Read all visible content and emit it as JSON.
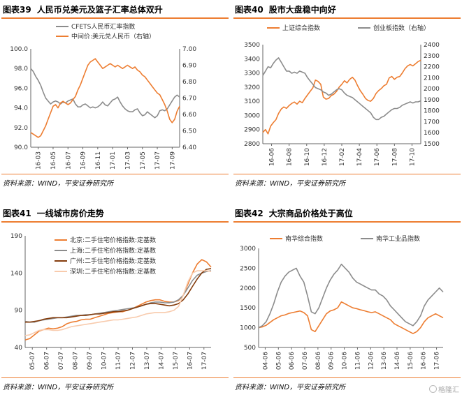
{
  "panels": [
    {
      "label": "图表39",
      "title": "人民币兑美元及篮子汇率总体双升",
      "source": "资料来源：WIND，平安证券研究所"
    },
    {
      "label": "图表40",
      "title": "股市大盘稳中向好",
      "source": "资料来源：WIND，平安证券研究所"
    },
    {
      "label": "图表41",
      "title": "一线城市房价走势",
      "source": "资料来源：WIND，平安证券研究所"
    },
    {
      "label": "图表42",
      "title": "大宗商品价格处于高位",
      "source": "资料来源：WIND，平安证券研究所"
    }
  ],
  "watermark": "格隆汇",
  "colors": {
    "orange": "#ED7D31",
    "gray": "#8C8C8C",
    "brown": "#843C0C",
    "peach": "#F8CBAD",
    "rule": "#ED7D31"
  },
  "chart_data": [
    {
      "type": "line",
      "x_ticks": [
        "16-03",
        "16-05",
        "16-07",
        "16-09",
        "16-11",
        "17-01",
        "17-03",
        "17-05",
        "17-07",
        "17-09"
      ],
      "y_left": {
        "ticks": [
          "90.0",
          "92.0",
          "94.0",
          "96.0",
          "98.0",
          "100.0"
        ],
        "ylim": [
          90,
          100
        ]
      },
      "y_right": {
        "ticks": [
          "6.40",
          "6.50",
          "6.60",
          "6.70",
          "6.80",
          "6.90",
          "7.00"
        ],
        "ylim": [
          6.4,
          7.0
        ]
      },
      "legend_position": "top",
      "series": [
        {
          "name": "CFETS人民币汇率指数",
          "axis": "left",
          "color": "#8C8C8C",
          "values": [
            98.0,
            97.7,
            97.2,
            96.8,
            96.3,
            95.6,
            95.0,
            94.7,
            94.4,
            94.6,
            94.7,
            94.6,
            94.4,
            94.6,
            94.5,
            94.7,
            94.8,
            94.9,
            94.4,
            94.1,
            94.1,
            94.3,
            94.4,
            94.2,
            94.0,
            94.1,
            94.0,
            94.1,
            94.3,
            94.6,
            94.3,
            94.2,
            94.5,
            94.8,
            94.9,
            95.1,
            94.6,
            94.2,
            93.9,
            93.7,
            93.6,
            93.6,
            93.8,
            93.9,
            93.5,
            93.2,
            93.3,
            93.6,
            93.4,
            93.2,
            93.0,
            93.2,
            93.7,
            93.8,
            93.7,
            93.9,
            94.3,
            94.7,
            95.1,
            95.3,
            95.1
          ]
        },
        {
          "name": "中间价:美元兑人民币（右轴）",
          "axis": "right",
          "color": "#ED7D31",
          "values": [
            6.49,
            6.48,
            6.47,
            6.46,
            6.47,
            6.5,
            6.53,
            6.57,
            6.61,
            6.65,
            6.66,
            6.64,
            6.67,
            6.68,
            6.67,
            6.66,
            6.67,
            6.69,
            6.71,
            6.75,
            6.78,
            6.82,
            6.86,
            6.9,
            6.92,
            6.93,
            6.94,
            6.92,
            6.9,
            6.88,
            6.89,
            6.9,
            6.91,
            6.9,
            6.89,
            6.9,
            6.89,
            6.88,
            6.89,
            6.9,
            6.89,
            6.88,
            6.89,
            6.87,
            6.86,
            6.84,
            6.83,
            6.81,
            6.79,
            6.77,
            6.75,
            6.73,
            6.72,
            6.69,
            6.66,
            6.62,
            6.57,
            6.55,
            6.57,
            6.62,
            6.65
          ]
        }
      ]
    },
    {
      "type": "line",
      "x_ticks": [
        "16-06",
        "16-08",
        "16-10",
        "16-12",
        "17-02",
        "17-04",
        "17-06",
        "17-08",
        "17-10"
      ],
      "y_left": {
        "ticks": [
          "2800",
          "2900",
          "3000",
          "3100",
          "3200",
          "3300",
          "3400",
          "3500"
        ],
        "ylim": [
          2800,
          3500
        ]
      },
      "y_right": {
        "ticks": [
          "1500",
          "1600",
          "1700",
          "1800",
          "1900",
          "2000",
          "2100",
          "2200",
          "2300",
          "2400"
        ],
        "ylim": [
          1500,
          2400
        ]
      },
      "legend_position": "top",
      "series": [
        {
          "name": "上证综合指数",
          "axis": "left",
          "color": "#ED7D31",
          "values": [
            2880,
            2900,
            2870,
            2925,
            2950,
            2970,
            3015,
            3045,
            3060,
            3050,
            3070,
            3085,
            3095,
            3080,
            3100,
            3090,
            3120,
            3145,
            3170,
            3195,
            3250,
            3240,
            3220,
            3130,
            3115,
            3120,
            3140,
            3150,
            3170,
            3200,
            3220,
            3245,
            3230,
            3255,
            3270,
            3250,
            3210,
            3175,
            3150,
            3120,
            3105,
            3100,
            3120,
            3155,
            3175,
            3190,
            3210,
            3220,
            3265,
            3275,
            3255,
            3270,
            3275,
            3300,
            3330,
            3350,
            3360,
            3350,
            3365,
            3380,
            3390
          ]
        },
        {
          "name": "创业板指数（右轴）",
          "axis": "right",
          "color": "#8C8C8C",
          "values": [
            2120,
            2160,
            2200,
            2190,
            2230,
            2260,
            2280,
            2240,
            2200,
            2160,
            2160,
            2140,
            2150,
            2140,
            2160,
            2150,
            2140,
            2100,
            2070,
            2040,
            2010,
            2000,
            1990,
            1970,
            1960,
            1940,
            1950,
            1970,
            1990,
            2000,
            1990,
            1960,
            1940,
            1930,
            1920,
            1900,
            1880,
            1860,
            1840,
            1820,
            1800,
            1780,
            1740,
            1720,
            1720,
            1740,
            1750,
            1770,
            1790,
            1810,
            1820,
            1820,
            1830,
            1850,
            1860,
            1870,
            1880,
            1870,
            1880,
            1880,
            1890
          ]
        }
      ]
    },
    {
      "type": "line",
      "x_ticks": [
        "05-07",
        "06-07",
        "07-07",
        "08-07",
        "09-07",
        "10-07",
        "11-07",
        "12-07",
        "13-07",
        "14-07",
        "15-07",
        "16-07",
        "17-07"
      ],
      "y_left": {
        "ticks": [
          "40",
          "90",
          "140",
          "190"
        ],
        "ylim": [
          40,
          190
        ]
      },
      "legend_position": "top-left",
      "series": [
        {
          "name": "北京:二手住宅价格指数:定基数",
          "color": "#ED7D31",
          "values": [
            50,
            52,
            57,
            62,
            64,
            66,
            65,
            66,
            68,
            72,
            74,
            75,
            77,
            78,
            78,
            80,
            82,
            84,
            86,
            87,
            88,
            88,
            90,
            92,
            95,
            98,
            101,
            103,
            104,
            104,
            102,
            101,
            101,
            103,
            110,
            125,
            140,
            152,
            158,
            155,
            148
          ]
        },
        {
          "name": "上海:二手住宅价格指数:定基数",
          "color": "#8C8C8C",
          "values": [
            75,
            74,
            74,
            76,
            77,
            78,
            79,
            80,
            80,
            81,
            82,
            83,
            83,
            84,
            84,
            85,
            86,
            87,
            88,
            89,
            90,
            91,
            92,
            93,
            94,
            96,
            98,
            100,
            101,
            101,
            100,
            100,
            101,
            104,
            110,
            120,
            130,
            137,
            140,
            142,
            143
          ]
        },
        {
          "name": "广州:二手住宅价格指数:定基数",
          "color": "#843C0C",
          "values": [
            74,
            74,
            75,
            76,
            78,
            79,
            80,
            80,
            80,
            80,
            81,
            82,
            83,
            83,
            84,
            85,
            85,
            86,
            87,
            88,
            88,
            89,
            90,
            92,
            94,
            96,
            98,
            99,
            99,
            98,
            97,
            96,
            97,
            99,
            104,
            112,
            122,
            132,
            140,
            145,
            146
          ]
        },
        {
          "name": "深圳:二手住宅价格指数:定基数",
          "color": "#F8CBAD",
          "values": [
            56,
            57,
            60,
            63,
            64,
            64,
            63,
            63,
            64,
            66,
            68,
            69,
            70,
            71,
            72,
            73,
            74,
            75,
            76,
            77,
            77,
            78,
            79,
            80,
            81,
            83,
            85,
            86,
            87,
            87,
            87,
            88,
            90,
            95,
            110,
            128,
            140,
            143,
            143,
            143,
            142
          ]
        }
      ]
    },
    {
      "type": "line",
      "x_ticks": [
        "04-06",
        "05-06",
        "06-06",
        "07-06",
        "08-06",
        "09-06",
        "10-06",
        "11-06",
        "12-06",
        "13-06",
        "14-06",
        "15-06",
        "16-06",
        "17-06"
      ],
      "y_left": {
        "ticks": [
          "500",
          "1000",
          "1500",
          "2000",
          "2500",
          "3000"
        ],
        "ylim": [
          500,
          3000
        ]
      },
      "legend_position": "top",
      "series": [
        {
          "name": "南华综合指数",
          "color": "#ED7D31",
          "values": [
            1000,
            1020,
            1060,
            1130,
            1200,
            1250,
            1300,
            1320,
            1360,
            1380,
            1400,
            1420,
            1380,
            1300,
            950,
            900,
            1050,
            1200,
            1350,
            1420,
            1450,
            1500,
            1650,
            1600,
            1550,
            1500,
            1480,
            1450,
            1430,
            1400,
            1380,
            1400,
            1350,
            1300,
            1250,
            1200,
            1100,
            1050,
            1000,
            950,
            900,
            850,
            900,
            1000,
            1150,
            1250,
            1300,
            1350,
            1300,
            1250
          ]
        },
        {
          "name": "南华工业品指数",
          "color": "#8C8C8C",
          "values": [
            1000,
            1050,
            1150,
            1350,
            1600,
            1900,
            2150,
            2300,
            2400,
            2450,
            2500,
            2300,
            2150,
            1800,
            1400,
            1350,
            1500,
            1750,
            2000,
            2200,
            2350,
            2450,
            2600,
            2500,
            2400,
            2250,
            2150,
            2100,
            2050,
            2000,
            1950,
            1950,
            1850,
            1800,
            1700,
            1550,
            1450,
            1350,
            1250,
            1150,
            1100,
            1050,
            1150,
            1300,
            1550,
            1700,
            1800,
            1900,
            2000,
            1900
          ]
        }
      ]
    }
  ]
}
